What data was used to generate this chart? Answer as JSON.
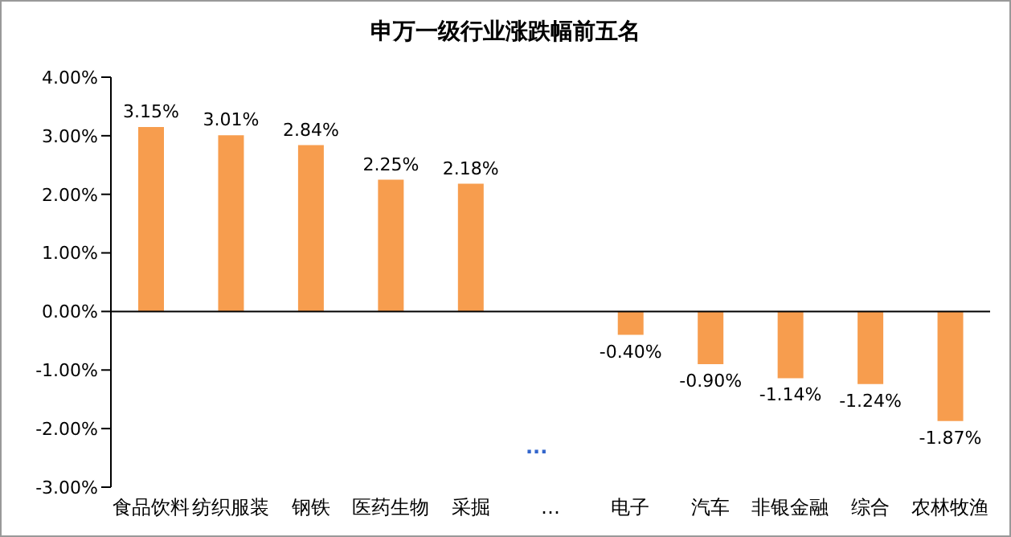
{
  "chart_data": {
    "type": "bar",
    "title": "申万一级行业涨跌幅前五名",
    "categories": [
      "食品饮料",
      "纺织服装",
      "钢铁",
      "医药生物",
      "采掘",
      "…",
      "电子",
      "汽车",
      "非银金融",
      "综合",
      "农林牧渔"
    ],
    "values": [
      3.15,
      3.01,
      2.84,
      2.25,
      2.18,
      null,
      -0.4,
      -0.9,
      -1.14,
      -1.24,
      -1.87
    ],
    "value_labels": [
      "3.15%",
      "3.01%",
      "2.84%",
      "2.25%",
      "2.18%",
      null,
      "-0.40%",
      "-0.90%",
      "-1.14%",
      "-1.24%",
      "-1.87%"
    ],
    "color": "#f79d4e",
    "ylim": [
      -3,
      4
    ],
    "yticks": [
      {
        "value": -3,
        "label": "-3.00%"
      },
      {
        "value": -2,
        "label": "-2.00%"
      },
      {
        "value": -1,
        "label": "-1.00%"
      },
      {
        "value": 0,
        "label": "0.00%"
      },
      {
        "value": 1,
        "label": "1.00%"
      },
      {
        "value": 2,
        "label": "2.00%"
      },
      {
        "value": 3,
        "label": "3.00%"
      },
      {
        "value": 4,
        "label": "4.00%"
      }
    ],
    "annotations": [
      "..."
    ],
    "legend": false
  }
}
